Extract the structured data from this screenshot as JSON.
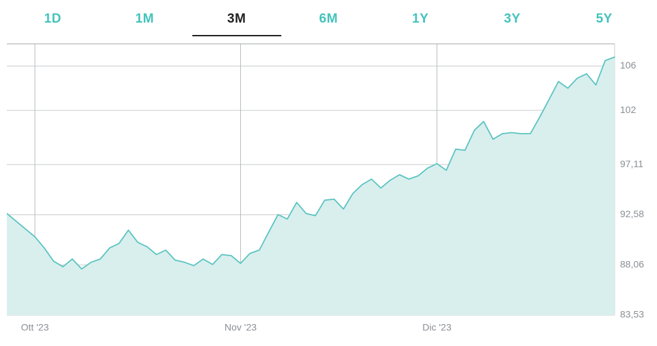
{
  "tabs": [
    {
      "label": "1D",
      "active": false
    },
    {
      "label": "1M",
      "active": false
    },
    {
      "label": "3M",
      "active": true
    },
    {
      "label": "6M",
      "active": false
    },
    {
      "label": "1Y",
      "active": false
    },
    {
      "label": "3Y",
      "active": false
    },
    {
      "label": "5Y",
      "active": false
    }
  ],
  "chart": {
    "type": "area",
    "background_color": "#ffffff",
    "accent_color": "#42c3bb",
    "tab_active_color": "#222222",
    "line_color": "#5bc4c0",
    "fill_color": "#d8efee",
    "grid_color": "#c9ccce",
    "axis_label_color": "#8a8f94",
    "y_axis": {
      "min": 83.53,
      "max": 108.0,
      "ticks": [
        83.53,
        88.06,
        92.58,
        97.11,
        102,
        106
      ],
      "tick_labels": [
        "83,53",
        "88,06",
        "92,58",
        "97,11",
        "102",
        "106"
      ],
      "label_fontsize": 14
    },
    "x_axis": {
      "min": 0,
      "max": 65,
      "month_markers": [
        3,
        25,
        46
      ],
      "month_labels": [
        "Ott '23",
        "Nov '23",
        "Dic '23"
      ],
      "label_fontsize": 14
    },
    "series": {
      "values": [
        92.7,
        92.0,
        91.3,
        90.6,
        89.6,
        88.4,
        87.9,
        88.6,
        87.7,
        88.3,
        88.6,
        89.6,
        90.0,
        91.2,
        90.1,
        89.7,
        89.0,
        89.4,
        88.5,
        88.3,
        88.0,
        88.6,
        88.1,
        89.0,
        88.9,
        88.2,
        89.1,
        89.4,
        91.0,
        92.6,
        92.2,
        93.7,
        92.7,
        92.5,
        93.9,
        94.0,
        93.1,
        94.5,
        95.3,
        95.8,
        95.0,
        95.7,
        96.2,
        95.8,
        96.1,
        96.8,
        97.2,
        96.6,
        98.5,
        98.4,
        100.2,
        101.0,
        99.4,
        99.9,
        100.0,
        99.9,
        99.9,
        101.4,
        103.0,
        104.6,
        104.0,
        104.9,
        105.3,
        104.3,
        106.5,
        106.8
      ]
    }
  }
}
